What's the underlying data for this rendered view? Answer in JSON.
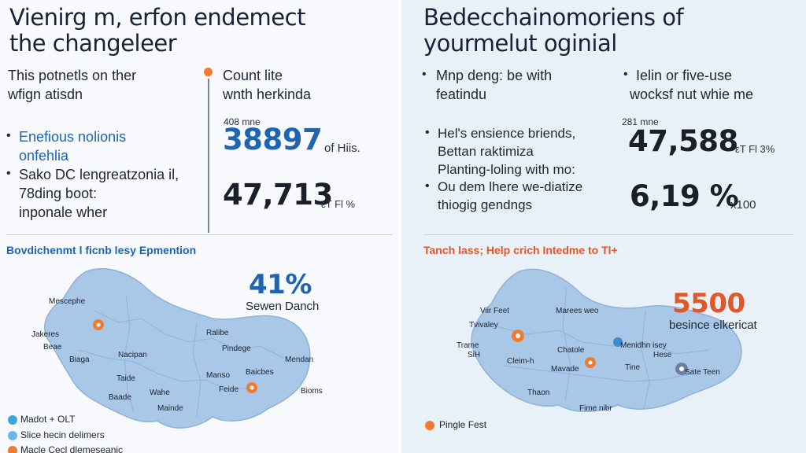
{
  "left": {
    "title": [
      "Vienirg m, erfon endemect",
      "the changeleer"
    ],
    "intro": [
      "This potnetls on ther",
      "wfign atisdn"
    ],
    "bullets": [
      {
        "lines": [
          "Enefious nolionis",
          "onfehlia"
        ],
        "color": "#1f64b0"
      },
      {
        "lines": [
          "Sako DC lengreatzonia il,",
          "78ding boot:",
          "inponale wher"
        ],
        "color": "#1f2633"
      }
    ],
    "stat_header": [
      "Count lite",
      "wnth herkinda"
    ],
    "stat_small": "408 mne",
    "stat1": {
      "value": "38897",
      "unit": "of Hiis.",
      "color": "#1f64b0"
    },
    "stat2": {
      "value": "47,713",
      "unit": "εT Fl %",
      "color": "#1f2633"
    },
    "section_title": "Bovdichenmt l ficnb lesy Epmention",
    "section_color": "#1f64b0",
    "map_stat": {
      "value": "41%",
      "label": "Sewen Danch",
      "color": "#1f64b0"
    },
    "places": [
      "Mescephe",
      "Jakeres",
      "Beae",
      "Biaga",
      "Nacipan",
      "Pindege",
      "Ralibe",
      "Baicbes",
      "Wahe",
      "Manso",
      "Mendan",
      "Taide",
      "Mainde",
      "Feide",
      "Bioms",
      "Baade"
    ],
    "legend": [
      {
        "label": "Madot + OLT",
        "color": "#3fa3dd"
      },
      {
        "label": "Slice hecin delimers",
        "color": "#6bb6e6"
      },
      {
        "label": "Macle Cecl dlemeseanic",
        "color": "#f07a2f"
      }
    ]
  },
  "right": {
    "title": [
      "Bedecchainomoriens of",
      "yourmelut oginial"
    ],
    "bullets_top": [
      {
        "lines": [
          "Mnp deng: be with",
          "featindu"
        ]
      },
      {
        "lines": [
          "Ielin or five-use",
          "wocksf nut whie me"
        ]
      }
    ],
    "list": [
      {
        "lines": [
          "Hel's ensience briends,",
          "Bettan raktimiza",
          "Planting-loling with mo:"
        ]
      },
      {
        "lines": [
          "Ou dem lhere we-diatize",
          "thiogig gendngs"
        ]
      }
    ],
    "stat_small": "281 mne",
    "stat1": {
      "value": "47,588",
      "unit": "εT Fl 3%"
    },
    "stat2": {
      "value": "6,19 %",
      "unit": "x100"
    },
    "section_title": "Tanch lass; Help crich Intedme to Tl+",
    "section_color": "#e2562a",
    "map_stat": {
      "value": "5500",
      "label": "besince elkericat",
      "color": "#e2562a"
    },
    "places": [
      "Viir Feet",
      "Tvivaley",
      "Trame",
      "SiH",
      "Marees weo",
      "Cleim-h",
      "Menidhn isey",
      "Chatole",
      "Mavade",
      "Thaon",
      "Tine",
      "Hese",
      "Sate Teen",
      "Fime nibr"
    ],
    "legend": [
      {
        "label": "Pingle Fest",
        "color": "#f07a2f"
      }
    ]
  }
}
